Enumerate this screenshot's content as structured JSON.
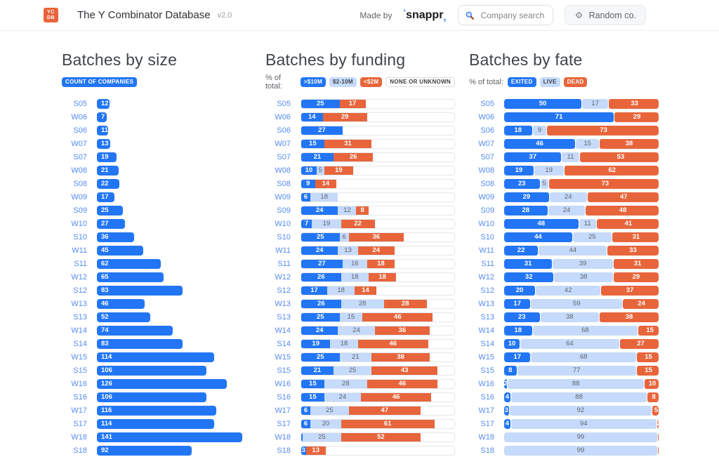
{
  "colors": {
    "primary_blue": "#2276f5",
    "light_blue": "#c6dafc",
    "orange": "#e8653c",
    "label_blue": "#548bf3"
  },
  "header": {
    "logo_top": "YC",
    "logo_bottom": "DB",
    "title": "The Y Combinator Database",
    "version": "v2.0",
    "made_by": "Made by",
    "brand": "snappr",
    "search_placeholder": "Company search",
    "random_button": "Random co."
  },
  "columns": [
    {
      "title": "Batches by size",
      "legend_prefix": "",
      "legend": [
        {
          "text": "COUNT OF COMPANIES",
          "style": "solid-blue"
        }
      ]
    },
    {
      "title": "Batches by funding",
      "legend_prefix": "% of total:",
      "legend": [
        {
          "text": ">$10M",
          "style": "solid-blue"
        },
        {
          "text": "$2-10M",
          "style": "light-blue"
        },
        {
          "text": "<$2M",
          "style": "solid-orange"
        },
        {
          "text": "NONE OR UNKNOWN",
          "style": "outline"
        }
      ]
    },
    {
      "title": "Batches by fate",
      "legend_prefix": "% of total:",
      "legend": [
        {
          "text": "EXITED",
          "style": "solid-blue"
        },
        {
          "text": "LIVE",
          "style": "light-blue"
        },
        {
          "text": "DEAD",
          "style": "solid-orange"
        }
      ]
    }
  ],
  "chart_data": [
    {
      "type": "bar",
      "title": "Batches by size",
      "ylabel": "count of companies",
      "ylim": [
        0,
        150
      ],
      "categories": [
        "S05",
        "W06",
        "S06",
        "W07",
        "S07",
        "W08",
        "S08",
        "W09",
        "S09",
        "W10",
        "S10",
        "W11",
        "S11",
        "W12",
        "S12",
        "W13",
        "S13",
        "W14",
        "S14",
        "W15",
        "S15",
        "W16",
        "S16",
        "W17",
        "S17",
        "W18",
        "S18"
      ],
      "values": [
        12,
        7,
        11,
        13,
        19,
        21,
        22,
        17,
        25,
        27,
        36,
        45,
        62,
        65,
        83,
        46,
        52,
        74,
        83,
        114,
        106,
        126,
        106,
        116,
        114,
        141,
        92
      ]
    },
    {
      "type": "bar",
      "stacked": true,
      "title": "Batches by funding",
      "ylabel": "% of total",
      "ylim": [
        0,
        100
      ],
      "categories": [
        "S05",
        "W06",
        "S06",
        "W07",
        "S07",
        "W08",
        "S08",
        "W09",
        "S09",
        "W10",
        "S10",
        "W11",
        "S11",
        "W12",
        "S12",
        "W13",
        "S13",
        "W14",
        "S14",
        "W15",
        "S15",
        "W16",
        "S16",
        "W17",
        "S17",
        "W18",
        "S18"
      ],
      "series": [
        {
          "name": ">$10M",
          "values": [
            25,
            14,
            27,
            15,
            21,
            10,
            9,
            6,
            24,
            7,
            25,
            24,
            27,
            26,
            17,
            26,
            25,
            24,
            19,
            25,
            21,
            15,
            15,
            6,
            6,
            1,
            3
          ]
        },
        {
          "name": "$2-10M",
          "values": [
            0,
            0,
            0,
            0,
            0,
            5,
            0,
            18,
            12,
            19,
            6,
            13,
            16,
            18,
            18,
            28,
            15,
            24,
            18,
            21,
            25,
            28,
            24,
            25,
            20,
            25,
            0
          ]
        },
        {
          "name": "<$2M",
          "values": [
            17,
            29,
            0,
            31,
            26,
            19,
            14,
            0,
            8,
            22,
            36,
            24,
            18,
            18,
            14,
            28,
            46,
            36,
            46,
            38,
            43,
            46,
            46,
            47,
            61,
            52,
            13
          ]
        }
      ],
      "remainder_label": "NONE OR UNKNOWN"
    },
    {
      "type": "bar",
      "stacked": true,
      "title": "Batches by fate",
      "ylabel": "% of total",
      "ylim": [
        0,
        100
      ],
      "categories": [
        "S05",
        "W06",
        "S06",
        "W07",
        "S07",
        "W08",
        "S08",
        "W09",
        "S09",
        "W10",
        "S10",
        "W11",
        "S11",
        "W12",
        "S12",
        "W13",
        "S13",
        "W14",
        "S14",
        "W15",
        "S15",
        "W16",
        "S16",
        "W17",
        "S17",
        "W18",
        "S18"
      ],
      "series": [
        {
          "name": "EXITED",
          "values": [
            50,
            71,
            18,
            46,
            37,
            19,
            23,
            29,
            28,
            48,
            44,
            22,
            31,
            32,
            20,
            17,
            23,
            18,
            10,
            17,
            8,
            2,
            4,
            3,
            4,
            0,
            0
          ]
        },
        {
          "name": "LIVE",
          "values": [
            17,
            0,
            9,
            15,
            11,
            19,
            5,
            24,
            24,
            11,
            25,
            44,
            39,
            38,
            42,
            59,
            38,
            68,
            64,
            68,
            77,
            88,
            88,
            92,
            94,
            99,
            99
          ]
        },
        {
          "name": "DEAD",
          "values": [
            33,
            29,
            73,
            38,
            53,
            62,
            73,
            47,
            48,
            41,
            31,
            33,
            31,
            29,
            37,
            24,
            38,
            15,
            27,
            15,
            15,
            10,
            8,
            5,
            2,
            1,
            1
          ]
        }
      ]
    }
  ]
}
